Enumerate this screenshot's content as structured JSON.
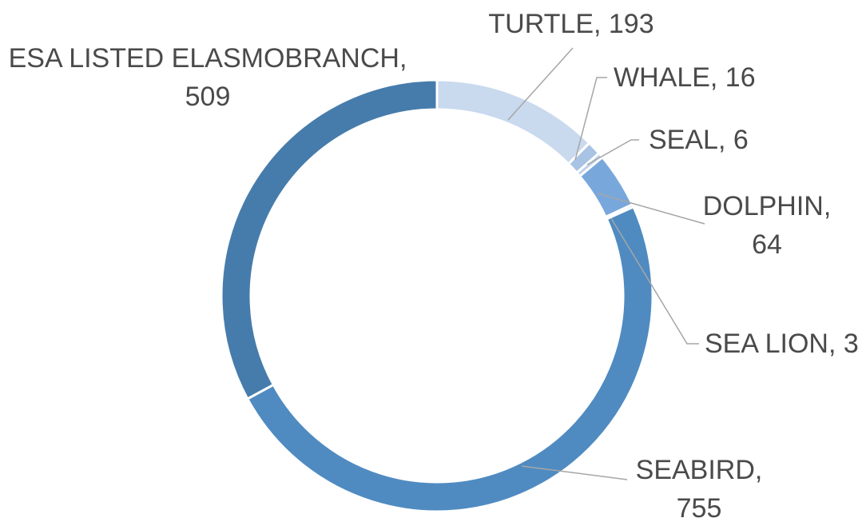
{
  "chart_data": {
    "type": "donut",
    "values": [
      193,
      16,
      6,
      64,
      3,
      755,
      509
    ],
    "value_labels": [
      "TURTLE, 193",
      "WHALE, 16",
      "SEAL, 6",
      "DOLPHIN, 64",
      "SEA LION, 3",
      "SEABIRD, 755",
      "ESA LISTED ELASMOBRANCH, 509"
    ],
    "colors": [
      "#c9d9ee",
      "#a9c3e4",
      "#bcd0ea",
      "#78a7dc",
      "#8fb5e0",
      "#4f8bc1",
      "#467cab"
    ]
  }
}
